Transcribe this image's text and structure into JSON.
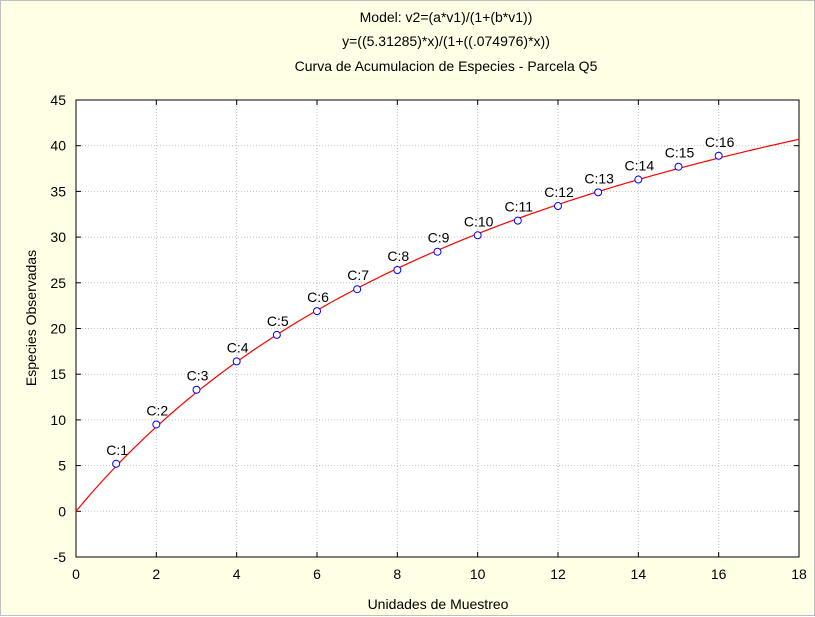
{
  "chart_data": {
    "type": "scatter",
    "title_lines": [
      "Model: v2=(a*v1)/(1+(b*v1))",
      "y=((5.31285)*x)/(1+((.074976)*x))",
      "Curva de Acumulacion de Especies - Parcela Q5"
    ],
    "xlabel": "Unidades de Muestreo",
    "ylabel": "Especies Observadas",
    "xlim": [
      0,
      18
    ],
    "ylim": [
      -5,
      45
    ],
    "xticks": [
      0,
      2,
      4,
      6,
      8,
      10,
      12,
      14,
      16,
      18
    ],
    "yticks": [
      -5,
      0,
      5,
      10,
      15,
      20,
      25,
      30,
      35,
      40,
      45
    ],
    "grid": true,
    "model": {
      "a": 5.31285,
      "b": 0.074976
    },
    "points": [
      {
        "x": 1,
        "y": 5.2,
        "label": "C:1"
      },
      {
        "x": 2,
        "y": 9.5,
        "label": "C:2"
      },
      {
        "x": 3,
        "y": 13.3,
        "label": "C:3"
      },
      {
        "x": 4,
        "y": 16.4,
        "label": "C:4"
      },
      {
        "x": 5,
        "y": 19.3,
        "label": "C:5"
      },
      {
        "x": 6,
        "y": 21.9,
        "label": "C:6"
      },
      {
        "x": 7,
        "y": 24.3,
        "label": "C:7"
      },
      {
        "x": 8,
        "y": 26.4,
        "label": "C:8"
      },
      {
        "x": 9,
        "y": 28.4,
        "label": "C:9"
      },
      {
        "x": 10,
        "y": 30.2,
        "label": "C:10"
      },
      {
        "x": 11,
        "y": 31.8,
        "label": "C:11"
      },
      {
        "x": 12,
        "y": 33.4,
        "label": "C:12"
      },
      {
        "x": 13,
        "y": 34.9,
        "label": "C:13"
      },
      {
        "x": 14,
        "y": 36.3,
        "label": "C:14"
      },
      {
        "x": 15,
        "y": 37.7,
        "label": "C:15"
      },
      {
        "x": 16,
        "y": 38.9,
        "label": "C:16"
      }
    ],
    "colors": {
      "background": "#ffffe6",
      "plot_area": "#ffffff",
      "curve": "#ff0000",
      "marker": "#0000ff",
      "grid": "#c0c0c0"
    }
  }
}
